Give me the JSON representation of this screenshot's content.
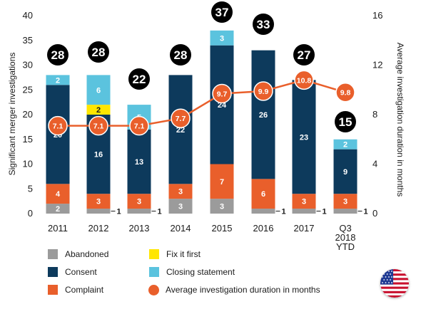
{
  "chart_data": {
    "type": "bar",
    "stacked": true,
    "categories": [
      "2011",
      "2012",
      "2013",
      "2014",
      "2015",
      "2016",
      "2017",
      "Q3\n2018\nYTD"
    ],
    "ylabel": "Significant merger investigations",
    "y2label": "Average investigation duration in months",
    "ylim": [
      0,
      40
    ],
    "yticks": [
      0,
      5,
      10,
      15,
      20,
      25,
      30,
      35,
      40
    ],
    "y2lim": [
      0,
      16
    ],
    "y2ticks": [
      0,
      4,
      8,
      12,
      16
    ],
    "series": [
      {
        "name": "Abandoned",
        "color": "#9b9b9b",
        "values": [
          2,
          1,
          1,
          3,
          3,
          1,
          1,
          1
        ],
        "labels": [
          "2",
          "1",
          "1",
          "3",
          "3",
          "1",
          "1",
          "1"
        ],
        "label_outside": [
          false,
          true,
          true,
          false,
          false,
          true,
          true,
          true
        ]
      },
      {
        "name": "Complaint",
        "color": "#e95f2b",
        "values": [
          4,
          3,
          3,
          3,
          7,
          6,
          3,
          3
        ],
        "labels": [
          "4",
          "3",
          "3",
          "3",
          "7",
          "6",
          "3",
          "3"
        ]
      },
      {
        "name": "Consent",
        "color": "#0d3a5c",
        "values": [
          20,
          16,
          13,
          22,
          24,
          26,
          23,
          9
        ],
        "labels": [
          "20",
          "16",
          "13",
          "22",
          "24",
          "26",
          "23",
          "9"
        ]
      },
      {
        "name": "Fix it first",
        "color": "#ffe600",
        "values": [
          0,
          2,
          0,
          0,
          0,
          0,
          0,
          0
        ],
        "labels": [
          "",
          "2",
          "",
          "",
          "",
          "",
          "",
          ""
        ]
      },
      {
        "name": "Closing statement",
        "color": "#5bc3de",
        "values": [
          2,
          6,
          5,
          0,
          3,
          0,
          0,
          2
        ],
        "labels": [
          "2",
          "6",
          "5",
          "",
          "3",
          "",
          "",
          "2"
        ]
      }
    ],
    "totals": [
      "28",
      "28",
      "22",
      "28",
      "37",
      "33",
      "27",
      "15"
    ],
    "line": {
      "name": "Average investigation duration in months",
      "color": "#e95f2b",
      "axis": "right",
      "values": [
        7.1,
        7.1,
        7.1,
        7.7,
        9.7,
        9.9,
        10.8,
        9.8
      ],
      "labels": [
        "7.1",
        "7.1",
        "7.1",
        "7.7",
        "9.7",
        "9.9",
        "10.8",
        "9.8"
      ]
    },
    "legend": [
      {
        "name": "Abandoned",
        "color": "#9b9b9b",
        "shape": "square"
      },
      {
        "name": "Fix it first",
        "color": "#ffe600",
        "shape": "square"
      },
      {
        "name": "Consent",
        "color": "#0d3a5c",
        "shape": "square"
      },
      {
        "name": "Closing statement",
        "color": "#5bc3de",
        "shape": "square"
      },
      {
        "name": "Complaint",
        "color": "#e95f2b",
        "shape": "square"
      },
      {
        "name": "Average investigation duration in months",
        "color": "#e95f2b",
        "shape": "circle"
      }
    ]
  },
  "flag": {
    "icon": "us-flag-icon"
  }
}
